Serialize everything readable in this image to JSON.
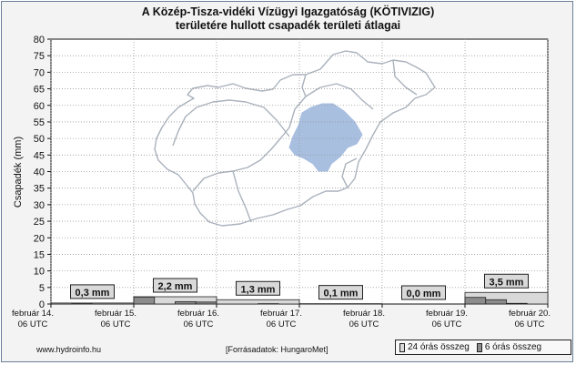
{
  "chart_data": {
    "type": "bar",
    "title": "A Közép-Tisza-vidéki Vízügyi Igazgatóság (KÖTIVIZIG)\nterületére hullott csapadék területi átlagai",
    "ylabel": "Csapadék (mm)",
    "ylim": [
      0,
      80
    ],
    "yticks": [
      0,
      5,
      10,
      15,
      20,
      25,
      30,
      35,
      40,
      45,
      50,
      55,
      60,
      65,
      70,
      75,
      80
    ],
    "grid": true,
    "x_tick_labels": [
      {
        "line1": "február 14.",
        "line2": "06 UTC"
      },
      {
        "line1": "február 15.",
        "line2": "06 UTC"
      },
      {
        "line1": "február 16.",
        "line2": "06 UTC"
      },
      {
        "line1": "február 17.",
        "line2": "06 UTC"
      },
      {
        "line1": "február 18.",
        "line2": "06 UTC"
      },
      {
        "line1": "február 19.",
        "line2": "06 UTC"
      },
      {
        "line1": "február 20.",
        "line2": "06 UTC"
      }
    ],
    "series": [
      {
        "name": "24 órás összeg",
        "color": "#d9d9d9",
        "values": [
          0.3,
          2.2,
          1.3,
          0.1,
          0.0,
          3.5
        ],
        "labels": [
          "0,3 mm",
          "2,2 mm",
          "1,3 mm",
          "0,1 mm",
          "0,0 mm",
          "3,5 mm"
        ]
      },
      {
        "name": "6 órás összeg",
        "color": "#8c8c8c",
        "values": [
          0.0,
          0.1,
          0.0,
          0.0,
          2.1,
          0.0,
          0.7,
          0.6,
          0.0,
          0.0,
          0.1,
          0.0,
          0.0,
          0.0,
          0.0,
          0.0,
          0.0,
          0.0,
          0.0,
          0.0,
          2.0,
          1.3,
          0.2,
          0.0
        ]
      }
    ],
    "map_region_color": "#a8bfe0",
    "map_outline_color": "#aab2bc"
  },
  "footer": {
    "source_url": "www.hydroinfo.hu",
    "data_source": "[Forrásadatok: HungaroMet]"
  }
}
